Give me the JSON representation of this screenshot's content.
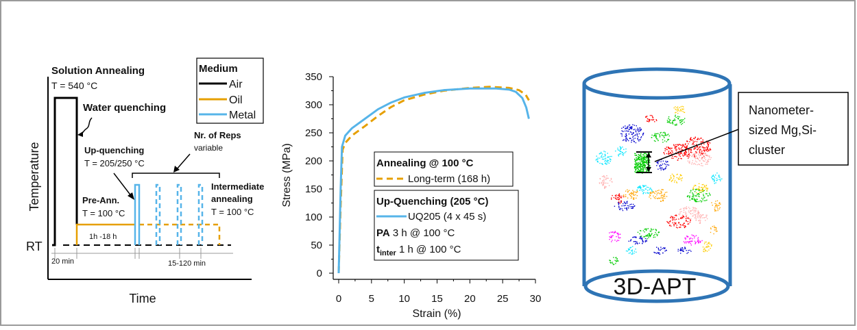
{
  "process_diagram": {
    "solution_annealing": "Solution Annealing",
    "solution_temp": "T = 540 °C",
    "water_quenching": "Water quenching",
    "up_quenching": "Up-quenching",
    "up_quenching_temp": "T = 205/250 °C",
    "reps_title": "Nr. of Reps",
    "reps_sub": "variable",
    "pre_ann": "Pre-Ann.",
    "pre_ann_temp": "T = 100 °C",
    "intermediate_1": "Intermediate",
    "intermediate_2": "annealing",
    "intermediate_temp": "T = 100 °C",
    "duration_pre": "1h -18 h",
    "duration_solution": "20 min",
    "duration_inter": "15-120 min",
    "y_label": "Temperature",
    "rt_label": "RT",
    "x_label": "Time",
    "legend": {
      "title": "Medium",
      "items": [
        {
          "label": "Air",
          "color": "#000000"
        },
        {
          "label": "Oil",
          "color": "#E69F00"
        },
        {
          "label": "Metal",
          "color": "#56B4E9"
        }
      ]
    }
  },
  "chart_data": {
    "type": "line",
    "xlabel": "Strain (%)",
    "ylabel": "Stress (MPa)",
    "xlim": [
      0,
      30
    ],
    "ylim": [
      0,
      350
    ],
    "xticks": [
      "0",
      "5",
      "10",
      "15",
      "20",
      "25",
      "30"
    ],
    "yticks": [
      "0",
      "50",
      "100",
      "150",
      "200",
      "250",
      "300",
      "350"
    ],
    "grid": false,
    "legend_groups": [
      {
        "title": "Annealing @ 100 °C"
      },
      {
        "title": "Up-Quenching (205 °C)",
        "notes": [
          {
            "bold": "PA",
            "text": " 3 h @ 100 °C"
          },
          {
            "bold": "t",
            "sub": "inter",
            "text": " 1 h @ 100 °C"
          }
        ]
      }
    ],
    "series": [
      {
        "name": "Long-term (168 h)",
        "color": "#E69F00",
        "style": "dashed",
        "x": [
          0,
          0.3,
          0.6,
          1,
          2,
          4,
          6,
          8,
          10,
          13,
          16,
          20,
          23,
          26,
          27.5,
          28.5,
          29
        ],
        "y": [
          0,
          120,
          220,
          232,
          245,
          262,
          280,
          296,
          308,
          318,
          325,
          330,
          332,
          330,
          326,
          318,
          308
        ]
      },
      {
        "name": "UQ205 (4 x 45 s)",
        "color": "#56B4E9",
        "style": "solid",
        "x": [
          0,
          0.3,
          0.5,
          1,
          2,
          4,
          6,
          8,
          10,
          13,
          16,
          20,
          24,
          26,
          27,
          28,
          28.6,
          29
        ],
        "y": [
          0,
          150,
          225,
          245,
          258,
          275,
          292,
          304,
          313,
          321,
          326,
          329,
          329,
          327,
          323,
          312,
          295,
          275
        ]
      }
    ]
  },
  "apt": {
    "label": "3D-APT",
    "callout": [
      "Nanometer-",
      "sized Mg,Si-",
      "cluster"
    ],
    "cylinder_color": "#2E74B5",
    "cluster_colors": [
      "#ff0000",
      "#00cc00",
      "#0000cc",
      "#ffcc00",
      "#ff00ff",
      "#00e5ff",
      "#ffb0b0",
      "#ffa500"
    ]
  }
}
